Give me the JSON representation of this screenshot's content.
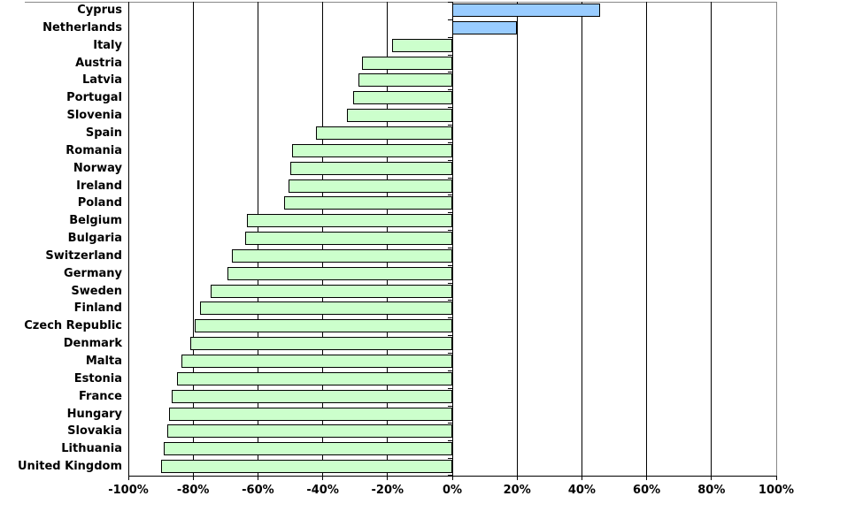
{
  "chart": {
    "background_color": "#FFFFFF",
    "frame_color": "#888888",
    "gridline_color": "#000000",
    "axis_color": "#000000",
    "positive_bar_color": "#99CCFF",
    "negative_bar_color": "#CCFFCC",
    "bar_border_color": "#000000",
    "text_color": "#000000"
  },
  "chart_data": {
    "type": "bar",
    "orientation": "horizontal",
    "title": "",
    "xlabel": "",
    "ylabel": "",
    "value_unit": "%",
    "xlim": [
      -100,
      100
    ],
    "x_tick_step": 20,
    "grid": true,
    "legend": false,
    "categories": [
      "Cyprus",
      "Netherlands",
      "Italy",
      "Austria",
      "Latvia",
      "Portugal",
      "Slovenia",
      "Spain",
      "Romania",
      "Norway",
      "Ireland",
      "Poland",
      "Belgium",
      "Bulgaria",
      "Switzerland",
      "Germany",
      "Sweden",
      "Finland",
      "Czech Republic",
      "Denmark",
      "Malta",
      "Estonia",
      "France",
      "Hungary",
      "Slovakia",
      "Lithuania",
      "United Kingdom"
    ],
    "values": [
      45.5,
      20,
      -18.5,
      -28,
      -29,
      -30.5,
      -32.5,
      -42,
      -49.5,
      -50,
      -50.5,
      -52,
      -63.5,
      -64,
      -68,
      -69.5,
      -74.5,
      -78,
      -79.5,
      -81,
      -83.5,
      -85,
      -86.5,
      -87.5,
      -88,
      -89,
      -90
    ],
    "x_tick_labels": [
      "-100%",
      "-80%",
      "-60%",
      "-40%",
      "-20%",
      "0%",
      "20%",
      "40%",
      "60%",
      "80%",
      "100%"
    ]
  }
}
